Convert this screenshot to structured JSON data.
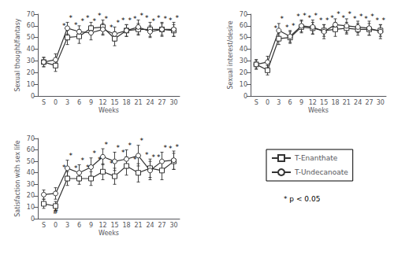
{
  "chart_data": [
    {
      "type": "line",
      "xlabel": "Weeks",
      "ylabel": "Sexual thought/fantasy",
      "categories": [
        "S",
        "0",
        "3",
        "6",
        "9",
        "12",
        "15",
        "18",
        "21",
        "24",
        "27",
        "30"
      ],
      "ylim": [
        0,
        70
      ],
      "yticks": [
        0,
        10,
        20,
        30,
        40,
        50,
        60,
        70
      ],
      "grid": false,
      "series": [
        {
          "name": "T-Enanthate",
          "color": "#333333",
          "marker": "square",
          "line_style": "solid",
          "values": [
            29,
            26,
            50,
            51,
            58,
            59,
            49,
            56,
            57,
            57,
            57,
            56
          ],
          "errors": [
            4,
            5,
            6,
            6,
            5,
            6,
            6,
            5,
            5,
            6,
            6,
            5
          ]
        },
        {
          "name": "T-Undecanoate",
          "color": "#333333",
          "marker": "circle",
          "line_style": "solid",
          "values": [
            29,
            31,
            58,
            55,
            54,
            57,
            53,
            56,
            59,
            55,
            57,
            57
          ],
          "errors": [
            4,
            5,
            5,
            5,
            6,
            5,
            6,
            5,
            6,
            5,
            5,
            6
          ]
        }
      ],
      "annotations": [
        {
          "text": "*",
          "categories": [
            "3",
            "6",
            "9",
            "12",
            "15",
            "18",
            "21",
            "24",
            "27",
            "30"
          ]
        }
      ]
    },
    {
      "type": "line",
      "xlabel": "Weeks",
      "ylabel": "Sexual interest/desire",
      "categories": [
        "S",
        "0",
        "3",
        "6",
        "9",
        "12",
        "15",
        "18",
        "21",
        "24",
        "27",
        "30"
      ],
      "ylim": [
        0,
        70
      ],
      "yticks": [
        0,
        10,
        20,
        30,
        40,
        50,
        60,
        70
      ],
      "grid": false,
      "series": [
        {
          "name": "T-Enanthate",
          "color": "#333333",
          "marker": "square",
          "line_style": "solid",
          "values": [
            27,
            22,
            49,
            50,
            59,
            58,
            56,
            57,
            58,
            57,
            57,
            56
          ],
          "errors": [
            4,
            4,
            5,
            5,
            5,
            5,
            5,
            6,
            5,
            5,
            5,
            5
          ]
        },
        {
          "name": "T-Undecanoate",
          "color": "#333333",
          "marker": "circle",
          "line_style": "solid",
          "values": [
            27,
            29,
            56,
            51,
            60,
            59,
            55,
            61,
            60,
            59,
            58,
            55
          ],
          "errors": [
            4,
            5,
            6,
            5,
            5,
            6,
            6,
            5,
            6,
            5,
            6,
            6
          ]
        }
      ],
      "annotations": [
        {
          "text": "*",
          "categories": [
            "3",
            "6",
            "9",
            "12",
            "15",
            "18",
            "21",
            "24",
            "27",
            "30"
          ]
        }
      ]
    },
    {
      "type": "line",
      "xlabel": "Weeks",
      "ylabel": "Satisfaction with sex life",
      "categories": [
        "S",
        "0",
        "3",
        "6",
        "9",
        "12",
        "15",
        "18",
        "21",
        "24",
        "27",
        "30"
      ],
      "ylim": [
        0,
        70
      ],
      "yticks": [
        0,
        10,
        20,
        30,
        40,
        50,
        60,
        70
      ],
      "grid": false,
      "legend": "lower right",
      "series": [
        {
          "name": "T-Enanthate",
          "color": "#333333",
          "marker": "square",
          "line_style": "solid",
          "values": [
            13,
            11,
            35,
            35,
            35,
            41,
            37,
            46,
            40,
            44,
            42,
            50
          ],
          "errors": [
            4,
            4,
            6,
            5,
            6,
            7,
            7,
            8,
            8,
            8,
            8,
            7
          ]
        },
        {
          "name": "T-Undecanoate",
          "color": "#333333",
          "marker": "circle",
          "line_style": "solid",
          "values": [
            21,
            22,
            44,
            40,
            45,
            54,
            50,
            52,
            55,
            42,
            50,
            51
          ],
          "errors": [
            4,
            5,
            7,
            7,
            8,
            7,
            8,
            8,
            9,
            8,
            8,
            8
          ]
        }
      ],
      "annotations": [
        {
          "text": "*",
          "categories": [
            "3",
            "6",
            "9",
            "12",
            "15",
            "18",
            "21",
            "24",
            "27",
            "30"
          ]
        },
        {
          "text": "#",
          "x": "0",
          "y": 3
        },
        {
          "text": "* p < 0.05"
        }
      ]
    }
  ]
}
